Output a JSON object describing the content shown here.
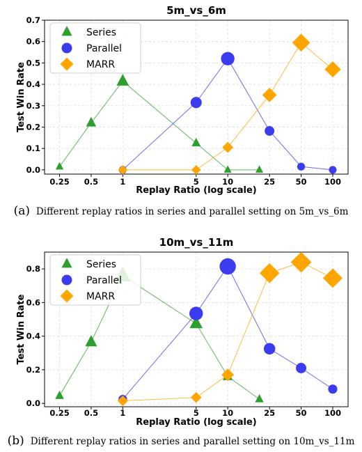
{
  "chart_data": [
    {
      "type": "line",
      "title": "5m_vs_6m",
      "xlabel": "Replay Ratio (log scale)",
      "ylabel": "Test Win Rate",
      "x_scale": "log",
      "xticks": [
        0.25,
        0.5,
        1,
        5,
        10,
        25,
        50,
        100
      ],
      "xtick_labels": [
        "0.25",
        "0.5",
        "1",
        "5",
        "10",
        "25",
        "50",
        "100"
      ],
      "yticks": [
        0.0,
        0.1,
        0.2,
        0.3,
        0.4,
        0.5,
        0.6,
        0.7
      ],
      "ytick_labels": [
        "0.0",
        "0.1",
        "0.2",
        "0.3",
        "0.4",
        "0.5",
        "0.6",
        "0.7"
      ],
      "ylim": [
        -0.02,
        0.7
      ],
      "grid": true,
      "legend_position": "top-left",
      "series": [
        {
          "name": "Series",
          "marker": "triangle",
          "color": "#2ca02c",
          "x": [
            0.25,
            0.5,
            1,
            5,
            10,
            20
          ],
          "y": [
            0.015,
            0.22,
            0.415,
            0.125,
            0.0,
            0.0
          ]
        },
        {
          "name": "Parallel",
          "marker": "circle",
          "color": "#3b3bf0",
          "x": [
            1,
            5,
            10,
            25,
            50,
            100
          ],
          "y": [
            0.0,
            0.315,
            0.52,
            0.182,
            0.015,
            0.0
          ]
        },
        {
          "name": "MARR",
          "marker": "diamond",
          "color": "#ffa500",
          "x": [
            1,
            5,
            10,
            25,
            50,
            100
          ],
          "y": [
            0.0,
            0.0,
            0.105,
            0.35,
            0.595,
            0.47
          ]
        }
      ]
    },
    {
      "type": "line",
      "title": "10m_vs_11m",
      "xlabel": "Replay Ratio (log scale)",
      "ylabel": "Test Win Rate",
      "x_scale": "log",
      "xticks": [
        0.25,
        0.5,
        1,
        5,
        10,
        25,
        50,
        100
      ],
      "xtick_labels": [
        "0.25",
        "0.5",
        "1",
        "5",
        "10",
        "25",
        "50",
        "100"
      ],
      "yticks": [
        0.0,
        0.2,
        0.4,
        0.6,
        0.8
      ],
      "ytick_labels": [
        "0.0",
        "0.2",
        "0.4",
        "0.6",
        "0.8"
      ],
      "ylim": [
        -0.02,
        0.9
      ],
      "grid": true,
      "legend_position": "top-left",
      "series": [
        {
          "name": "Series",
          "marker": "triangle",
          "color": "#2ca02c",
          "x": [
            0.25,
            0.5,
            1,
            5,
            10,
            20
          ],
          "y": [
            0.045,
            0.365,
            0.76,
            0.475,
            0.16,
            0.025
          ]
        },
        {
          "name": "Parallel",
          "marker": "circle",
          "color": "#3b3bf0",
          "x": [
            1,
            5,
            10,
            25,
            50,
            100
          ],
          "y": [
            0.025,
            0.535,
            0.815,
            0.325,
            0.21,
            0.085
          ]
        },
        {
          "name": "MARR",
          "marker": "diamond",
          "color": "#ffa500",
          "x": [
            1,
            5,
            10,
            25,
            50,
            100
          ],
          "y": [
            0.015,
            0.035,
            0.17,
            0.775,
            0.84,
            0.745
          ]
        }
      ]
    }
  ],
  "captions": [
    {
      "label": "(a)",
      "text": "Different replay ratios in series and parallel setting on 5m_vs_6m"
    },
    {
      "label": "(b)",
      "text": "Different replay ratios in series and parallel setting on 10m_vs_11m"
    }
  ]
}
